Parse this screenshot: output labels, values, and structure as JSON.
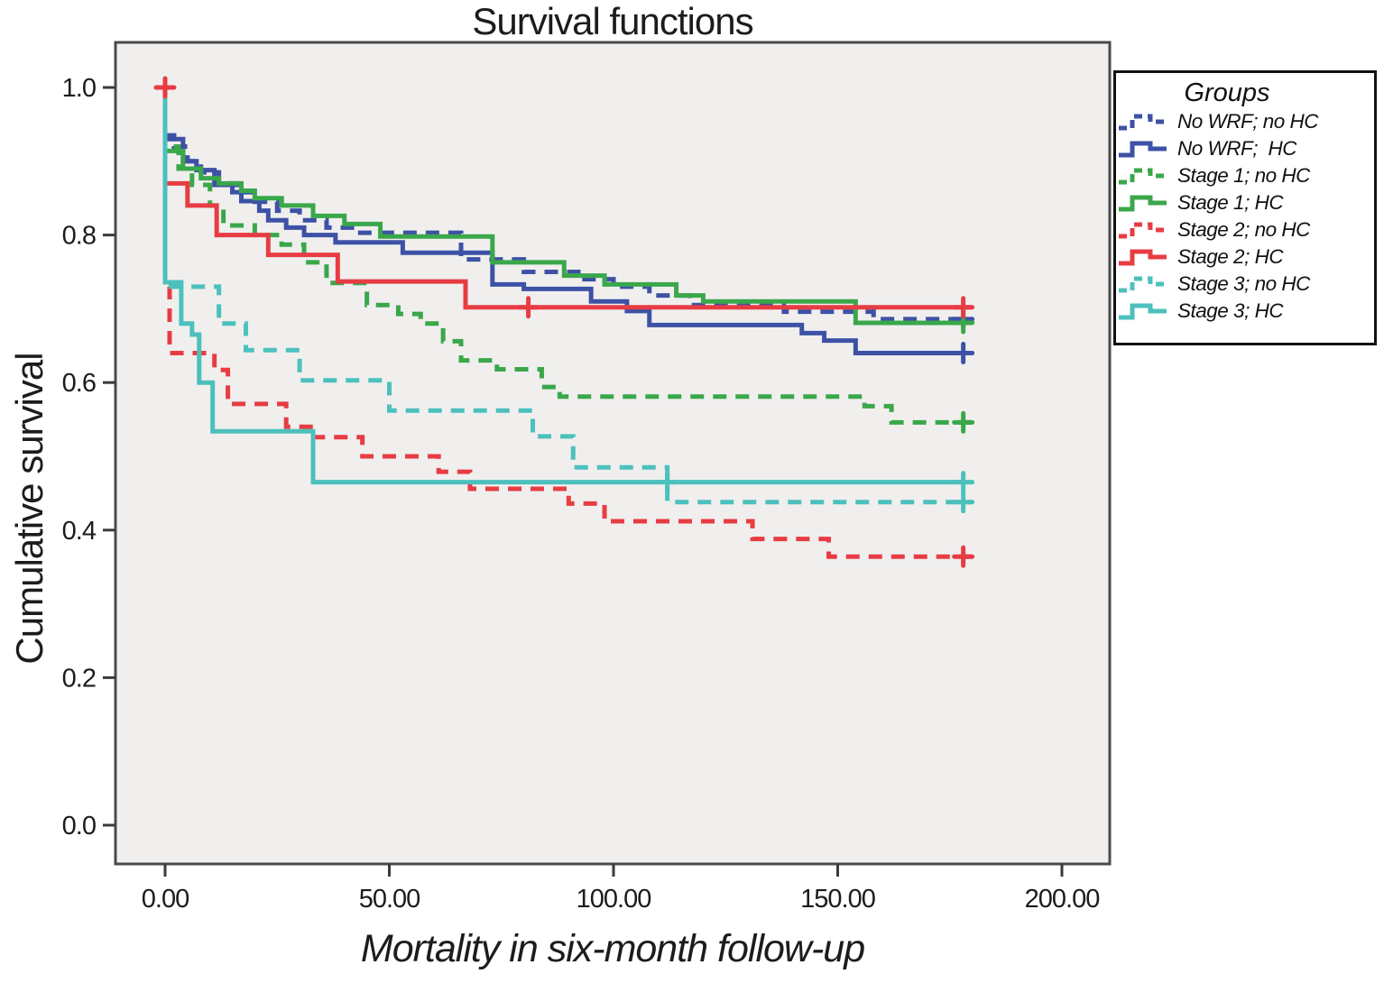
{
  "figure": {
    "title": "Survival functions",
    "legend_title": "Groups"
  },
  "chart_data": {
    "type": "line",
    "subtype": "kaplan-meier-step-survival",
    "title": "Survival functions",
    "xlabel": "Mortality in six-month follow-up",
    "ylabel": "Cumulative survival",
    "xlim": [
      0,
      200
    ],
    "ylim": [
      0.0,
      1.0
    ],
    "x_ticks": [
      0,
      50,
      100,
      150,
      200
    ],
    "x_tick_labels": [
      "0.00",
      "50.00",
      "100.00",
      "150.00",
      "200.00"
    ],
    "y_ticks": [
      1.0,
      0.8,
      0.6,
      0.4,
      0.2,
      0.0
    ],
    "y_tick_labels": [
      "1.0",
      "0.8",
      "0.6",
      "0.4",
      "0.2",
      "0.0"
    ],
    "grid": false,
    "legend_position": "outside-top-right",
    "legend_title": "Groups",
    "follow_up_end": 180,
    "plot_background": "#f0efee",
    "series": [
      {
        "name": "No WRF; no HC",
        "color": "#3d51a5",
        "dashed": true,
        "points": [
          [
            0,
            1.0
          ],
          [
            0,
            0.935
          ],
          [
            2,
            0.92
          ],
          [
            5,
            0.9
          ],
          [
            8,
            0.885
          ],
          [
            12,
            0.87
          ],
          [
            16,
            0.858
          ],
          [
            20,
            0.845
          ],
          [
            25,
            0.833
          ],
          [
            30,
            0.82
          ],
          [
            36,
            0.81
          ],
          [
            43,
            0.803
          ],
          [
            66,
            0.767
          ],
          [
            80,
            0.75
          ],
          [
            93,
            0.74
          ],
          [
            100,
            0.73
          ],
          [
            108,
            0.718
          ],
          [
            117,
            0.705
          ],
          [
            138,
            0.696
          ],
          [
            158,
            0.686
          ]
        ],
        "censor_marks": [
          [
            178,
            0.686
          ]
        ]
      },
      {
        "name": "No WRF;  HC",
        "color": "#3d51a5",
        "dashed": false,
        "points": [
          [
            0,
            1.0
          ],
          [
            0,
            0.93
          ],
          [
            4,
            0.9
          ],
          [
            7,
            0.888
          ],
          [
            11,
            0.868
          ],
          [
            15,
            0.858
          ],
          [
            17,
            0.846
          ],
          [
            21,
            0.833
          ],
          [
            23,
            0.82
          ],
          [
            27,
            0.81
          ],
          [
            31,
            0.8
          ],
          [
            38,
            0.79
          ],
          [
            53,
            0.776
          ],
          [
            73,
            0.733
          ],
          [
            80,
            0.727
          ],
          [
            95,
            0.71
          ],
          [
            103,
            0.697
          ],
          [
            108,
            0.678
          ],
          [
            142,
            0.667
          ],
          [
            147,
            0.657
          ],
          [
            154,
            0.64
          ]
        ],
        "censor_marks": [
          [
            178,
            0.64
          ]
        ]
      },
      {
        "name": "Stage 1; no HC",
        "color": "#3aa74a",
        "dashed": true,
        "points": [
          [
            0,
            1.0
          ],
          [
            0,
            0.92
          ],
          [
            3,
            0.89
          ],
          [
            6,
            0.868
          ],
          [
            10,
            0.84
          ],
          [
            13,
            0.813
          ],
          [
            20,
            0.8
          ],
          [
            26,
            0.787
          ],
          [
            31,
            0.763
          ],
          [
            36,
            0.735
          ],
          [
            45,
            0.705
          ],
          [
            52,
            0.693
          ],
          [
            57,
            0.68
          ],
          [
            62,
            0.656
          ],
          [
            66,
            0.63
          ],
          [
            74,
            0.618
          ],
          [
            84,
            0.594
          ],
          [
            88,
            0.581
          ],
          [
            156,
            0.568
          ],
          [
            162,
            0.546
          ]
        ],
        "censor_marks": [
          [
            178,
            0.546
          ]
        ]
      },
      {
        "name": "Stage 1; HC",
        "color": "#3aa74a",
        "dashed": false,
        "points": [
          [
            0,
            1.0
          ],
          [
            0,
            0.914
          ],
          [
            4,
            0.89
          ],
          [
            8,
            0.877
          ],
          [
            12,
            0.87
          ],
          [
            17,
            0.86
          ],
          [
            20,
            0.85
          ],
          [
            26,
            0.84
          ],
          [
            33,
            0.826
          ],
          [
            40,
            0.815
          ],
          [
            48,
            0.798
          ],
          [
            73,
            0.763
          ],
          [
            89,
            0.745
          ],
          [
            98,
            0.733
          ],
          [
            114,
            0.718
          ],
          [
            120,
            0.71
          ],
          [
            154,
            0.681
          ]
        ],
        "censor_marks": [
          [
            178,
            0.681
          ]
        ]
      },
      {
        "name": "Stage 2; no HC",
        "color": "#e73c43",
        "dashed": true,
        "points": [
          [
            0,
            1.0
          ],
          [
            0,
            0.73
          ],
          [
            1,
            0.64
          ],
          [
            11,
            0.617
          ],
          [
            14,
            0.571
          ],
          [
            27,
            0.54
          ],
          [
            33,
            0.526
          ],
          [
            44,
            0.5
          ],
          [
            61,
            0.479
          ],
          [
            68,
            0.456
          ],
          [
            90,
            0.436
          ],
          [
            98,
            0.412
          ],
          [
            131,
            0.388
          ],
          [
            148,
            0.364
          ]
        ],
        "censor_marks": [
          [
            178,
            0.364
          ]
        ]
      },
      {
        "name": "Stage 2; HC",
        "color": "#e73c43",
        "dashed": false,
        "points": [
          [
            0,
            1.0
          ],
          [
            0,
            0.87
          ],
          [
            5,
            0.84
          ],
          [
            11.5,
            0.8
          ],
          [
            23,
            0.773
          ],
          [
            38.5,
            0.737
          ],
          [
            67,
            0.702
          ]
        ],
        "censor_marks": [
          [
            0,
            1.0
          ],
          [
            81,
            0.702
          ],
          [
            178,
            0.702
          ]
        ]
      },
      {
        "name": "Stage 3; no HC",
        "color": "#4cc0bc",
        "dashed": true,
        "points": [
          [
            0,
            1.0
          ],
          [
            0,
            0.73
          ],
          [
            12,
            0.68
          ],
          [
            18,
            0.644
          ],
          [
            30,
            0.603
          ],
          [
            50,
            0.562
          ],
          [
            82,
            0.527
          ],
          [
            91,
            0.485
          ],
          [
            112,
            0.438
          ]
        ],
        "censor_marks": [
          [
            178,
            0.438
          ]
        ]
      },
      {
        "name": "Stage 3; HC",
        "color": "#4cc0bc",
        "dashed": false,
        "points": [
          [
            0,
            1.0
          ],
          [
            0,
            0.736
          ],
          [
            3.6,
            0.68
          ],
          [
            6,
            0.665
          ],
          [
            7.6,
            0.6
          ],
          [
            10.6,
            0.534
          ],
          [
            33,
            0.465
          ]
        ],
        "censor_marks": [
          [
            112,
            0.465
          ],
          [
            178,
            0.465
          ]
        ]
      }
    ]
  }
}
